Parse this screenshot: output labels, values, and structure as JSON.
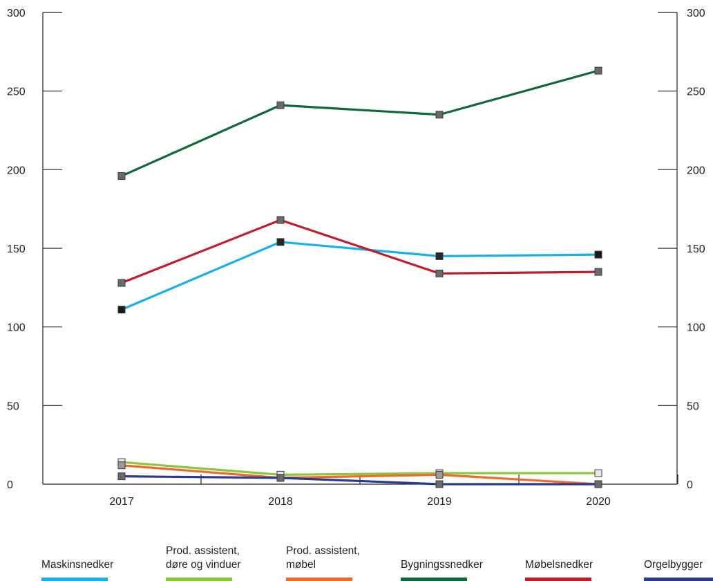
{
  "chart_data": {
    "type": "line",
    "categories": [
      "2017",
      "2018",
      "2019",
      "2020"
    ],
    "ylim": [
      0,
      300
    ],
    "yticks": [
      "0",
      "50",
      "100",
      "150",
      "200",
      "250",
      "300"
    ],
    "grid": false,
    "dual_y_axis": true,
    "legend_position": "bottom",
    "series": [
      {
        "name": "Maskinsnedker",
        "color": "#1AAFE8",
        "values": [
          111,
          154,
          145,
          146
        ]
      },
      {
        "name": "Prod. assistent,\ndøre og vinduer",
        "color": "#8CC63F",
        "values": [
          14,
          6,
          7,
          7
        ]
      },
      {
        "name": "Prod. assistent,\nmøbel",
        "color": "#EE6B2D",
        "values": [
          12,
          4,
          6,
          0
        ]
      },
      {
        "name": "Bygningssnedker",
        "color": "#11673A",
        "values": [
          196,
          241,
          235,
          263
        ]
      },
      {
        "name": "Møbelsnedker",
        "color": "#BE1E2D",
        "values": [
          128,
          168,
          134,
          135
        ]
      },
      {
        "name": "Orgelbygger",
        "color": "#2B3990",
        "values": [
          5,
          4,
          0,
          0
        ]
      }
    ]
  }
}
